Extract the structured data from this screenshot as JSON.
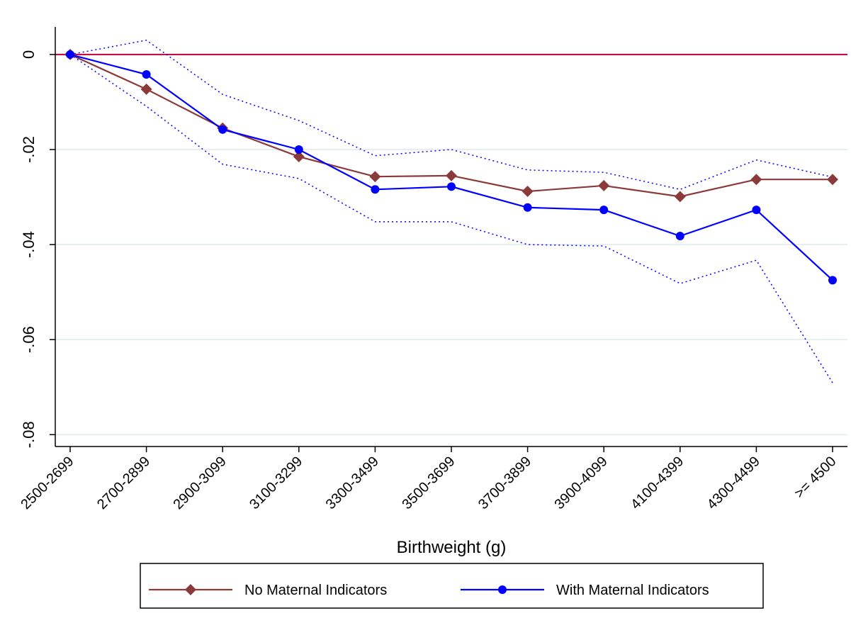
{
  "chart_data": {
    "type": "line",
    "xlabel": "Birthweight (g)",
    "categories": [
      "2500-2699",
      "2700-2899",
      "2900-3099",
      "3100-3299",
      "3300-3499",
      "3500-3699",
      "3700-3899",
      "3900-4099",
      "4100-4399",
      "4300-4499",
      ">= 4500"
    ],
    "series": [
      {
        "name": "No Maternal Indicators",
        "color": "#8b3a3a",
        "marker": "diamond",
        "values": [
          0,
          -0.0073,
          -0.0155,
          -0.0215,
          -0.0257,
          -0.0255,
          -0.0288,
          -0.0276,
          -0.0299,
          -0.0263,
          -0.0263
        ]
      },
      {
        "name": "With Maternal Indicators",
        "color": "#0000ff",
        "marker": "circle",
        "values": [
          0,
          -0.0042,
          -0.0158,
          -0.02,
          -0.0284,
          -0.0278,
          -0.0322,
          -0.0327,
          -0.0382,
          -0.0327,
          -0.0475
        ]
      },
      {
        "color": "#0000ff",
        "dash": "dotted",
        "values": [
          0,
          0.003,
          -0.0084,
          -0.0139,
          -0.0213,
          -0.02,
          -0.0243,
          -0.0248,
          -0.0284,
          -0.0222,
          -0.0258
        ]
      },
      {
        "color": "#0000ff",
        "dash": "dotted",
        "values": [
          0,
          -0.0109,
          -0.0231,
          -0.0261,
          -0.0352,
          -0.0352,
          -0.04,
          -0.0403,
          -0.0482,
          -0.0433,
          -0.0691
        ]
      }
    ],
    "ylim": [
      -0.0825,
      0.0058
    ],
    "yticks": [
      0,
      {
        "value": -0.02,
        "label": "-.02"
      },
      {
        "value": -0.04,
        "label": "-.04"
      },
      {
        "value": -0.06,
        "label": "-.06"
      },
      {
        "value": -0.08,
        "label": "-.08"
      }
    ],
    "grid": true,
    "grid_color": "#e6eeee",
    "hline": {
      "value": 0,
      "color": "#c0003a"
    },
    "legend": "bottom"
  }
}
